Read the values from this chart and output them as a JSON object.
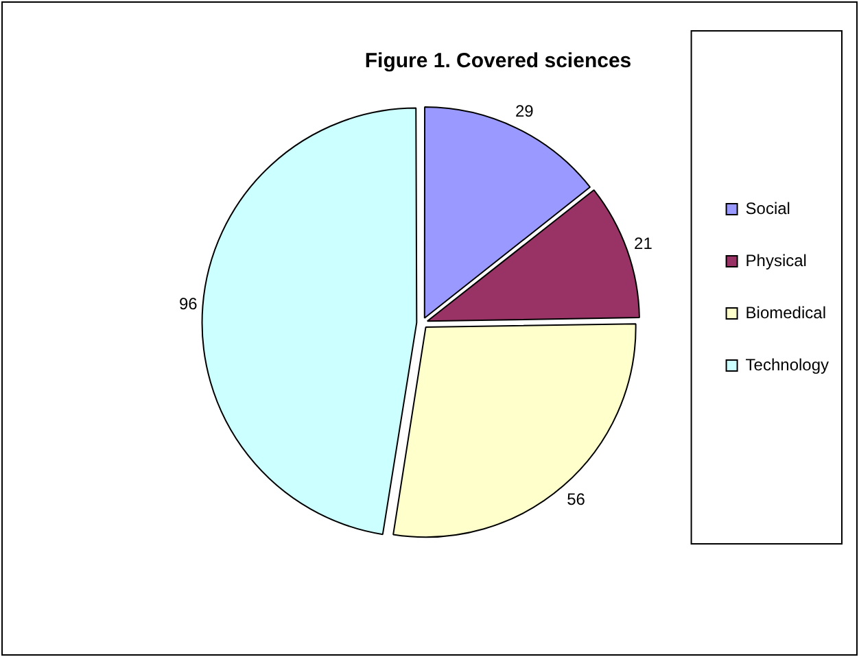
{
  "chart_data": {
    "type": "pie",
    "title": "Figure 1. Covered sciences",
    "categories": [
      "Social",
      "Physical",
      "Biomedical",
      "Technology"
    ],
    "values": [
      29,
      21,
      56,
      96
    ],
    "colors": [
      "#9999ff",
      "#993366",
      "#ffffcc",
      "#ccffff"
    ],
    "data_labels": true,
    "legend": "right"
  }
}
